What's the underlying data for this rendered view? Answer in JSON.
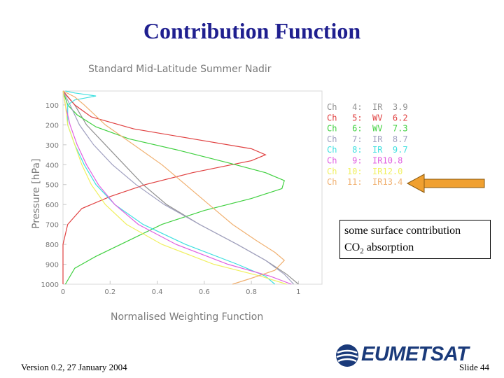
{
  "slide": {
    "title": "Contribution Function",
    "footer_left": "Version 0.2, 27 January 2004",
    "footer_right": "Slide 44",
    "logo_text": "EUMETSAT"
  },
  "annotation": {
    "line1": "some surface contribution",
    "line2_prefix": "CO",
    "line2_sub": "2",
    "line2_suffix": " absorption",
    "arrow_color": "#f0a030"
  },
  "chart_data": {
    "type": "line",
    "title": "Standard Mid-Latitude Summer Nadir",
    "xlabel": "Normalised Weighting Function",
    "ylabel": "Pressure [hPa]",
    "xlim": [
      0,
      1.1
    ],
    "ylim": [
      1000,
      30
    ],
    "y_inverted": true,
    "x_ticks": [
      "0",
      "0.2",
      "0.4",
      "0.6",
      "0.8",
      "1"
    ],
    "y_ticks": [
      "100",
      "200",
      "300",
      "400",
      "500",
      "600",
      "700",
      "800",
      "900",
      "1000"
    ],
    "legend_position": "right",
    "series": [
      {
        "name": "Ch   4:  IR  3.9",
        "color": "#909090",
        "points": [
          [
            0,
            30
          ],
          [
            0.02,
            60
          ],
          [
            0.05,
            100
          ],
          [
            0.1,
            200
          ],
          [
            0.18,
            300
          ],
          [
            0.26,
            400
          ],
          [
            0.34,
            500
          ],
          [
            0.44,
            600
          ],
          [
            0.58,
            700
          ],
          [
            0.74,
            800
          ],
          [
            0.86,
            880
          ],
          [
            0.95,
            950
          ],
          [
            1.0,
            1000
          ]
        ]
      },
      {
        "name": "Ch   5:  WV  6.2",
        "color": "#e04040",
        "points": [
          [
            0,
            30
          ],
          [
            0.05,
            100
          ],
          [
            0.12,
            160
          ],
          [
            0.3,
            220
          ],
          [
            0.55,
            270
          ],
          [
            0.8,
            320
          ],
          [
            0.86,
            350
          ],
          [
            0.8,
            380
          ],
          [
            0.55,
            440
          ],
          [
            0.35,
            500
          ],
          [
            0.2,
            560
          ],
          [
            0.08,
            620
          ],
          [
            0.02,
            700
          ],
          [
            0,
            800
          ],
          [
            0,
            1000
          ]
        ]
      },
      {
        "name": "Ch   6:  WV  7.3",
        "color": "#40d040",
        "points": [
          [
            0,
            30
          ],
          [
            0.02,
            100
          ],
          [
            0.06,
            150
          ],
          [
            0.14,
            210
          ],
          [
            0.28,
            270
          ],
          [
            0.5,
            330
          ],
          [
            0.7,
            390
          ],
          [
            0.86,
            440
          ],
          [
            0.94,
            480
          ],
          [
            0.93,
            520
          ],
          [
            0.8,
            570
          ],
          [
            0.6,
            630
          ],
          [
            0.42,
            700
          ],
          [
            0.28,
            780
          ],
          [
            0.14,
            860
          ],
          [
            0.05,
            920
          ],
          [
            0.01,
            1000
          ]
        ]
      },
      {
        "name": "Ch   7:  IR  8.7",
        "color": "#a0a0c0",
        "points": [
          [
            0,
            30
          ],
          [
            0.03,
            100
          ],
          [
            0.07,
            200
          ],
          [
            0.13,
            300
          ],
          [
            0.21,
            400
          ],
          [
            0.31,
            500
          ],
          [
            0.43,
            600
          ],
          [
            0.58,
            700
          ],
          [
            0.74,
            800
          ],
          [
            0.86,
            880
          ],
          [
            0.94,
            950
          ],
          [
            0.98,
            1000
          ]
        ]
      },
      {
        "name": "Ch   8:  IR  9.7",
        "color": "#40e0e0",
        "points": [
          [
            0.01,
            30
          ],
          [
            0.05,
            40
          ],
          [
            0.14,
            55
          ],
          [
            0.05,
            75
          ],
          [
            0.02,
            100
          ],
          [
            0.02,
            200
          ],
          [
            0.05,
            300
          ],
          [
            0.09,
            400
          ],
          [
            0.14,
            500
          ],
          [
            0.22,
            600
          ],
          [
            0.34,
            700
          ],
          [
            0.52,
            800
          ],
          [
            0.74,
            900
          ],
          [
            0.86,
            960
          ],
          [
            0.9,
            1000
          ]
        ]
      },
      {
        "name": "Ch   9:  IR10.8",
        "color": "#e060e0",
        "points": [
          [
            0,
            30
          ],
          [
            0.01,
            100
          ],
          [
            0.03,
            200
          ],
          [
            0.06,
            300
          ],
          [
            0.1,
            400
          ],
          [
            0.15,
            500
          ],
          [
            0.22,
            600
          ],
          [
            0.32,
            700
          ],
          [
            0.48,
            800
          ],
          [
            0.7,
            900
          ],
          [
            0.88,
            960
          ],
          [
            0.97,
            1000
          ]
        ]
      },
      {
        "name": "Ch  10:  IR12.0",
        "color": "#f0f060",
        "points": [
          [
            0,
            30
          ],
          [
            0.01,
            100
          ],
          [
            0.02,
            200
          ],
          [
            0.05,
            300
          ],
          [
            0.08,
            400
          ],
          [
            0.12,
            500
          ],
          [
            0.18,
            600
          ],
          [
            0.27,
            700
          ],
          [
            0.42,
            800
          ],
          [
            0.64,
            900
          ],
          [
            0.84,
            960
          ],
          [
            0.95,
            1000
          ]
        ]
      },
      {
        "name": "Ch  11:  IR13.4",
        "color": "#f0b070",
        "points": [
          [
            0,
            30
          ],
          [
            0.05,
            60
          ],
          [
            0.09,
            100
          ],
          [
            0.18,
            200
          ],
          [
            0.3,
            300
          ],
          [
            0.42,
            400
          ],
          [
            0.52,
            500
          ],
          [
            0.62,
            600
          ],
          [
            0.72,
            700
          ],
          [
            0.82,
            780
          ],
          [
            0.9,
            840
          ],
          [
            0.94,
            880
          ],
          [
            0.9,
            930
          ],
          [
            0.8,
            970
          ],
          [
            0.72,
            1000
          ]
        ]
      }
    ]
  }
}
